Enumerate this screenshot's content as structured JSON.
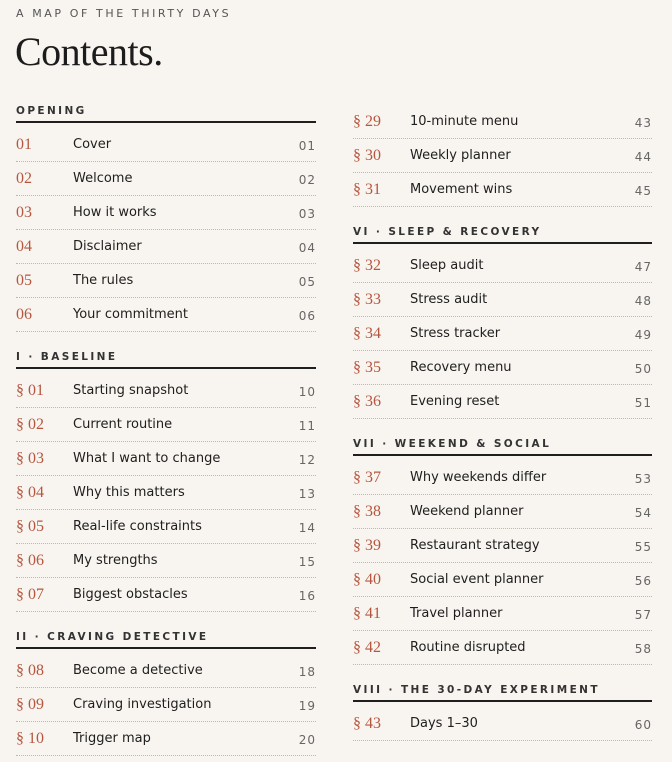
{
  "header": {
    "kicker": "A MAP OF THE THIRTY DAYS",
    "title": "Contents."
  },
  "columns": [
    [
      {
        "heading": "OPENING",
        "entries": [
          {
            "num": "01",
            "title": "Cover",
            "page": "01"
          },
          {
            "num": "02",
            "title": "Welcome",
            "page": "02"
          },
          {
            "num": "03",
            "title": "How it works",
            "page": "03"
          },
          {
            "num": "04",
            "title": "Disclaimer",
            "page": "04"
          },
          {
            "num": "05",
            "title": "The rules",
            "page": "05"
          },
          {
            "num": "06",
            "title": "Your commitment",
            "page": "06"
          }
        ]
      },
      {
        "heading": "I · BASELINE",
        "entries": [
          {
            "num": "§ 01",
            "title": "Starting snapshot",
            "page": "10"
          },
          {
            "num": "§ 02",
            "title": "Current routine",
            "page": "11"
          },
          {
            "num": "§ 03",
            "title": "What I want to change",
            "page": "12"
          },
          {
            "num": "§ 04",
            "title": "Why this matters",
            "page": "13"
          },
          {
            "num": "§ 05",
            "title": "Real-life constraints",
            "page": "14"
          },
          {
            "num": "§ 06",
            "title": "My strengths",
            "page": "15"
          },
          {
            "num": "§ 07",
            "title": "Biggest obstacles",
            "page": "16"
          }
        ]
      },
      {
        "heading": "II · CRAVING DETECTIVE",
        "entries": [
          {
            "num": "§ 08",
            "title": "Become a detective",
            "page": "18"
          },
          {
            "num": "§ 09",
            "title": "Craving investigation",
            "page": "19"
          },
          {
            "num": "§ 10",
            "title": "Trigger map",
            "page": "20"
          }
        ]
      }
    ],
    [
      {
        "entries": [
          {
            "num": "§ 29",
            "title": "10-minute menu",
            "page": "43"
          },
          {
            "num": "§ 30",
            "title": "Weekly planner",
            "page": "44"
          },
          {
            "num": "§ 31",
            "title": "Movement wins",
            "page": "45"
          }
        ]
      },
      {
        "heading": "VI · SLEEP & RECOVERY",
        "entries": [
          {
            "num": "§ 32",
            "title": "Sleep audit",
            "page": "47"
          },
          {
            "num": "§ 33",
            "title": "Stress audit",
            "page": "48"
          },
          {
            "num": "§ 34",
            "title": "Stress tracker",
            "page": "49"
          },
          {
            "num": "§ 35",
            "title": "Recovery menu",
            "page": "50"
          },
          {
            "num": "§ 36",
            "title": "Evening reset",
            "page": "51"
          }
        ]
      },
      {
        "heading": "VII · WEEKEND & SOCIAL",
        "entries": [
          {
            "num": "§ 37",
            "title": "Why weekends differ",
            "page": "53"
          },
          {
            "num": "§ 38",
            "title": "Weekend planner",
            "page": "54"
          },
          {
            "num": "§ 39",
            "title": "Restaurant strategy",
            "page": "55"
          },
          {
            "num": "§ 40",
            "title": "Social event planner",
            "page": "56"
          },
          {
            "num": "§ 41",
            "title": "Travel planner",
            "page": "57"
          },
          {
            "num": "§ 42",
            "title": "Routine disrupted",
            "page": "58"
          }
        ]
      },
      {
        "heading": "VIII · THE 30-DAY EXPERIMENT",
        "entries": [
          {
            "num": "§ 43",
            "title": "Days 1–30",
            "page": "60"
          }
        ]
      }
    ]
  ]
}
